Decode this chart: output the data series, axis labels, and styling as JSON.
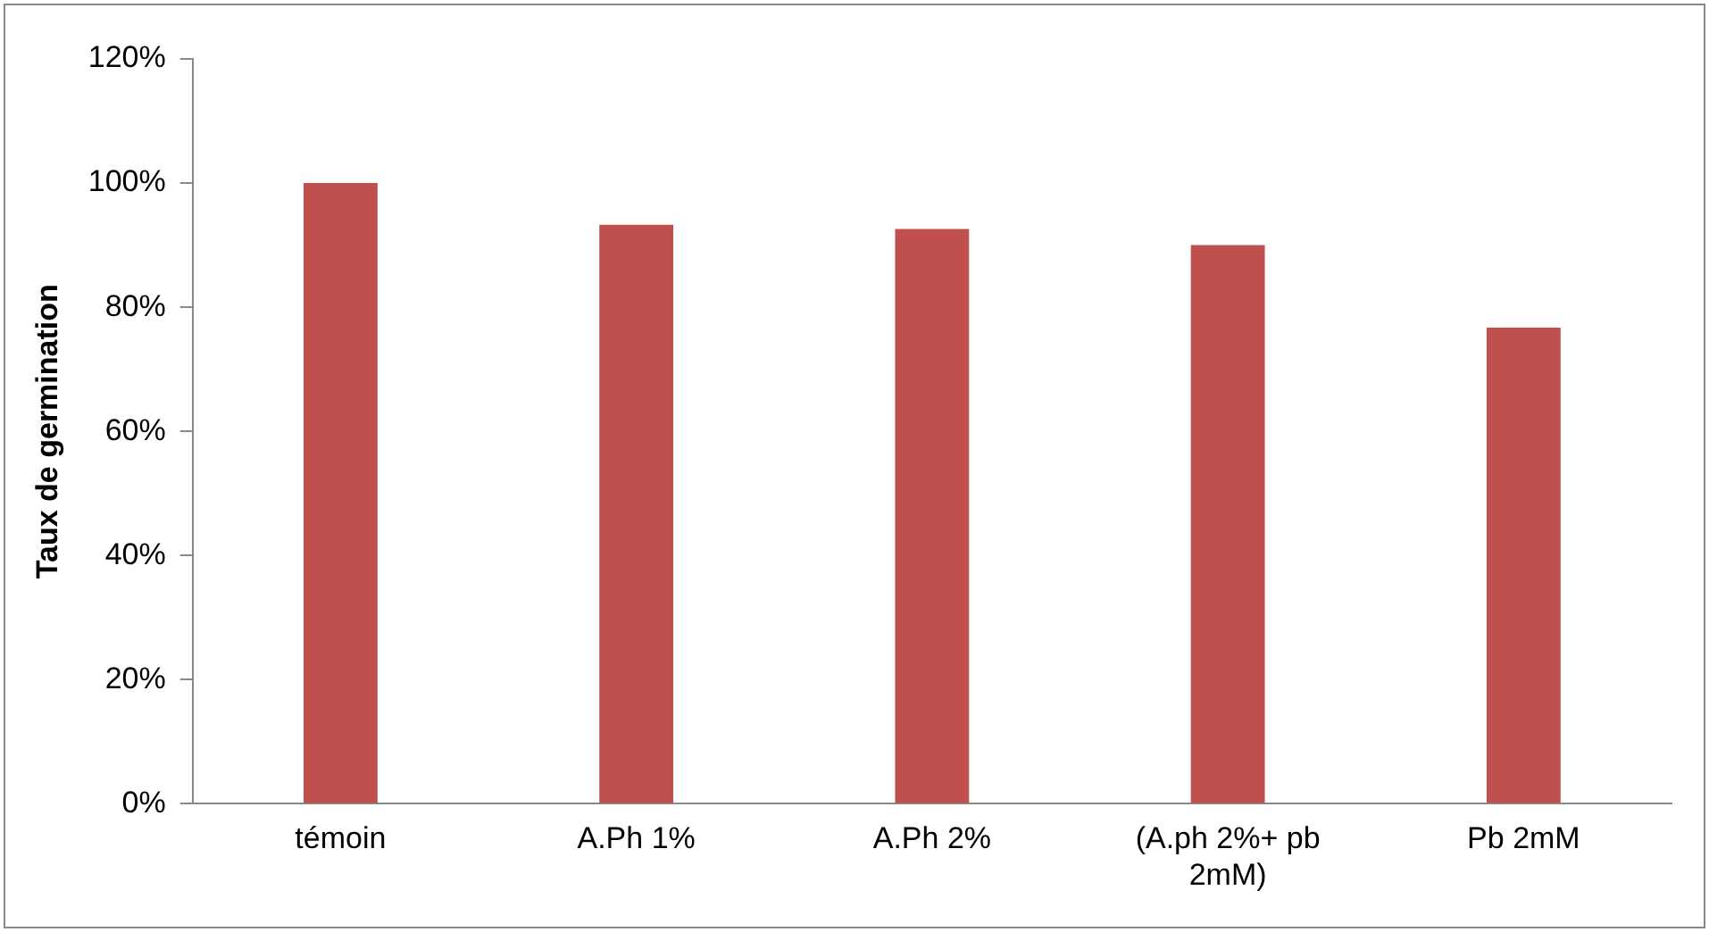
{
  "chart_data": {
    "type": "bar",
    "ylabel": "Taux de germination",
    "categories": [
      "témoin",
      "A.Ph 1%",
      "A.Ph 2%",
      "(A.ph 2%+ pb 2mM)",
      "Pb 2mM"
    ],
    "values": [
      100,
      93.3,
      92.6,
      90,
      76.7
    ],
    "color": "#c0504d",
    "ylim": [
      0,
      120
    ],
    "yticks": [
      {
        "value": 0,
        "label": "0%"
      },
      {
        "value": 20,
        "label": "20%"
      },
      {
        "value": 40,
        "label": "40%"
      },
      {
        "value": 60,
        "label": "60%"
      },
      {
        "value": 80,
        "label": "80%"
      },
      {
        "value": 100,
        "label": "100%"
      },
      {
        "value": 120,
        "label": "120%"
      }
    ],
    "grid": false,
    "legend": false
  }
}
